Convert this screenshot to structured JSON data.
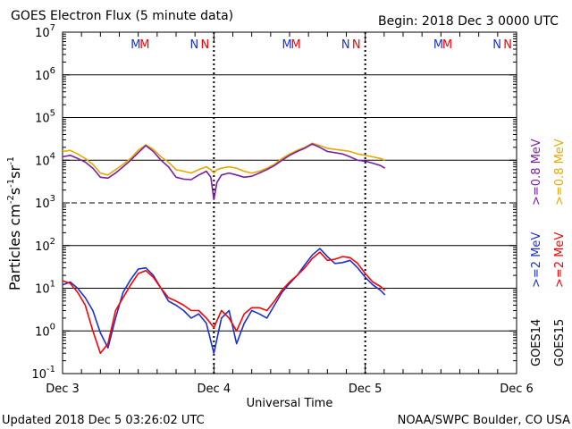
{
  "header": {
    "title": "GOES Electron Flux (5 minute data)",
    "begin": "Begin: 2018 Dec 3 0000 UTC"
  },
  "footer": {
    "updated": "Updated 2018 Dec  5 03:26:02 UTC",
    "source": "NOAA/SWPC Boulder, CO USA"
  },
  "colors": {
    "goes14_high": "#1a2fd6",
    "goes15_high": "#ff0000",
    "goes14_low": "#7a1ea8",
    "goes15_low": "#e6a800"
  },
  "chart_data": {
    "type": "line",
    "title": "GOES Electron Flux (5 minute data)",
    "xlabel": "Universal Time",
    "ylabel": "Particles cm-2s-1sr-1",
    "y_scale": "log",
    "ylim": [
      0.1,
      10000000
    ],
    "xlim_days": [
      0,
      3
    ],
    "x_tick_labels": [
      "Dec 3",
      "Dec 4",
      "Dec 5",
      "Dec 6"
    ],
    "y_tick_exponents": [
      -1,
      0,
      1,
      2,
      3,
      4,
      5,
      6,
      7
    ],
    "grid": true,
    "legend_position": "right",
    "legend": {
      "high": ">=2 MeV",
      "low": ">=0.8 MeV",
      "sat_a": "GOES14",
      "sat_b": "GOES15"
    },
    "annotations": {
      "m1": "M",
      "m2": "M",
      "n1": "N",
      "n2": "N",
      "m_rows": [
        {
          "day": 0,
          "m": "MM",
          "n": "NN"
        },
        {
          "day": 1,
          "m": "MM",
          "n": "NN"
        },
        {
          "day": 2,
          "m": "MM",
          "n": "NN"
        }
      ]
    },
    "series": [
      {
        "name": "GOES15 >=0.8 MeV",
        "color": "#e6a800",
        "x": [
          0.0,
          0.05,
          0.1,
          0.15,
          0.2,
          0.25,
          0.3,
          0.35,
          0.4,
          0.45,
          0.5,
          0.55,
          0.6,
          0.65,
          0.7,
          0.75,
          0.8,
          0.85,
          0.9,
          0.95,
          0.98,
          1.0,
          1.02,
          1.05,
          1.1,
          1.15,
          1.2,
          1.25,
          1.3,
          1.35,
          1.4,
          1.45,
          1.5,
          1.55,
          1.6,
          1.65,
          1.7,
          1.75,
          1.8,
          1.85,
          1.9,
          1.95,
          2.0,
          2.05,
          2.1,
          2.13
        ],
        "y": [
          16000,
          17000,
          14000,
          11000,
          8000,
          5000,
          4500,
          6000,
          8000,
          11000,
          17000,
          23000,
          18000,
          12000,
          9000,
          6000,
          5500,
          5000,
          6000,
          7000,
          6000,
          5000,
          6000,
          6500,
          7000,
          6500,
          5500,
          5000,
          5500,
          6500,
          8000,
          11000,
          14000,
          17000,
          20000,
          25000,
          22000,
          19000,
          18000,
          17000,
          16000,
          14000,
          13000,
          12000,
          11000,
          10000
        ]
      },
      {
        "name": "GOES14 >=0.8 MeV",
        "color": "#7a1ea8",
        "x": [
          0.0,
          0.05,
          0.1,
          0.15,
          0.2,
          0.25,
          0.3,
          0.35,
          0.4,
          0.45,
          0.5,
          0.55,
          0.6,
          0.65,
          0.7,
          0.75,
          0.8,
          0.85,
          0.9,
          0.95,
          0.98,
          1.0,
          1.02,
          1.05,
          1.1,
          1.15,
          1.2,
          1.25,
          1.3,
          1.35,
          1.4,
          1.45,
          1.5,
          1.55,
          1.6,
          1.65,
          1.7,
          1.75,
          1.8,
          1.85,
          1.9,
          1.95,
          2.0,
          2.05,
          2.1,
          2.13
        ],
        "y": [
          12000,
          13000,
          11000,
          9000,
          6500,
          4000,
          3800,
          5000,
          7000,
          10000,
          15000,
          22000,
          16000,
          10000,
          7000,
          4000,
          3600,
          3500,
          4500,
          5500,
          4000,
          1200,
          3000,
          4500,
          5000,
          4500,
          4000,
          4200,
          5000,
          6000,
          7500,
          10000,
          13000,
          16000,
          19000,
          24000,
          20000,
          16000,
          15000,
          14000,
          12000,
          10000,
          9500,
          8500,
          7500,
          6500
        ]
      },
      {
        "name": "GOES14 >=2 MeV",
        "color": "#1a2fd6",
        "x": [
          0.0,
          0.05,
          0.1,
          0.15,
          0.2,
          0.25,
          0.3,
          0.35,
          0.4,
          0.45,
          0.5,
          0.55,
          0.6,
          0.65,
          0.7,
          0.75,
          0.8,
          0.85,
          0.9,
          0.95,
          1.0,
          1.05,
          1.1,
          1.15,
          1.2,
          1.25,
          1.3,
          1.35,
          1.4,
          1.45,
          1.5,
          1.55,
          1.6,
          1.65,
          1.7,
          1.75,
          1.8,
          1.85,
          1.9,
          1.95,
          2.0,
          2.05,
          2.1,
          2.13
        ],
        "y": [
          12,
          14,
          10,
          6,
          3,
          0.9,
          0.4,
          2,
          8,
          16,
          28,
          30,
          20,
          10,
          5,
          4,
          3,
          2,
          2.5,
          1.5,
          0.3,
          2,
          3,
          0.5,
          1.5,
          3,
          2.5,
          2,
          4,
          8,
          13,
          20,
          35,
          60,
          85,
          55,
          38,
          40,
          45,
          30,
          18,
          12,
          9,
          7
        ]
      },
      {
        "name": "GOES15 >=2 MeV",
        "color": "#ff0000",
        "x": [
          0.0,
          0.05,
          0.1,
          0.15,
          0.2,
          0.25,
          0.3,
          0.35,
          0.4,
          0.45,
          0.5,
          0.55,
          0.6,
          0.65,
          0.7,
          0.75,
          0.8,
          0.85,
          0.9,
          0.95,
          1.0,
          1.05,
          1.1,
          1.15,
          1.2,
          1.25,
          1.3,
          1.35,
          1.4,
          1.45,
          1.5,
          1.55,
          1.6,
          1.65,
          1.7,
          1.75,
          1.8,
          1.85,
          1.9,
          1.95,
          2.0,
          2.05,
          2.1,
          2.13
        ],
        "y": [
          15,
          13,
          8,
          4,
          1,
          0.3,
          0.5,
          3,
          6,
          12,
          22,
          26,
          18,
          10,
          6,
          5,
          4,
          3,
          3,
          2,
          1.2,
          3,
          2,
          1,
          2.5,
          3.5,
          3.5,
          3,
          5,
          9,
          14,
          20,
          30,
          50,
          70,
          45,
          48,
          55,
          52,
          38,
          22,
          14,
          11,
          9
        ]
      }
    ]
  }
}
